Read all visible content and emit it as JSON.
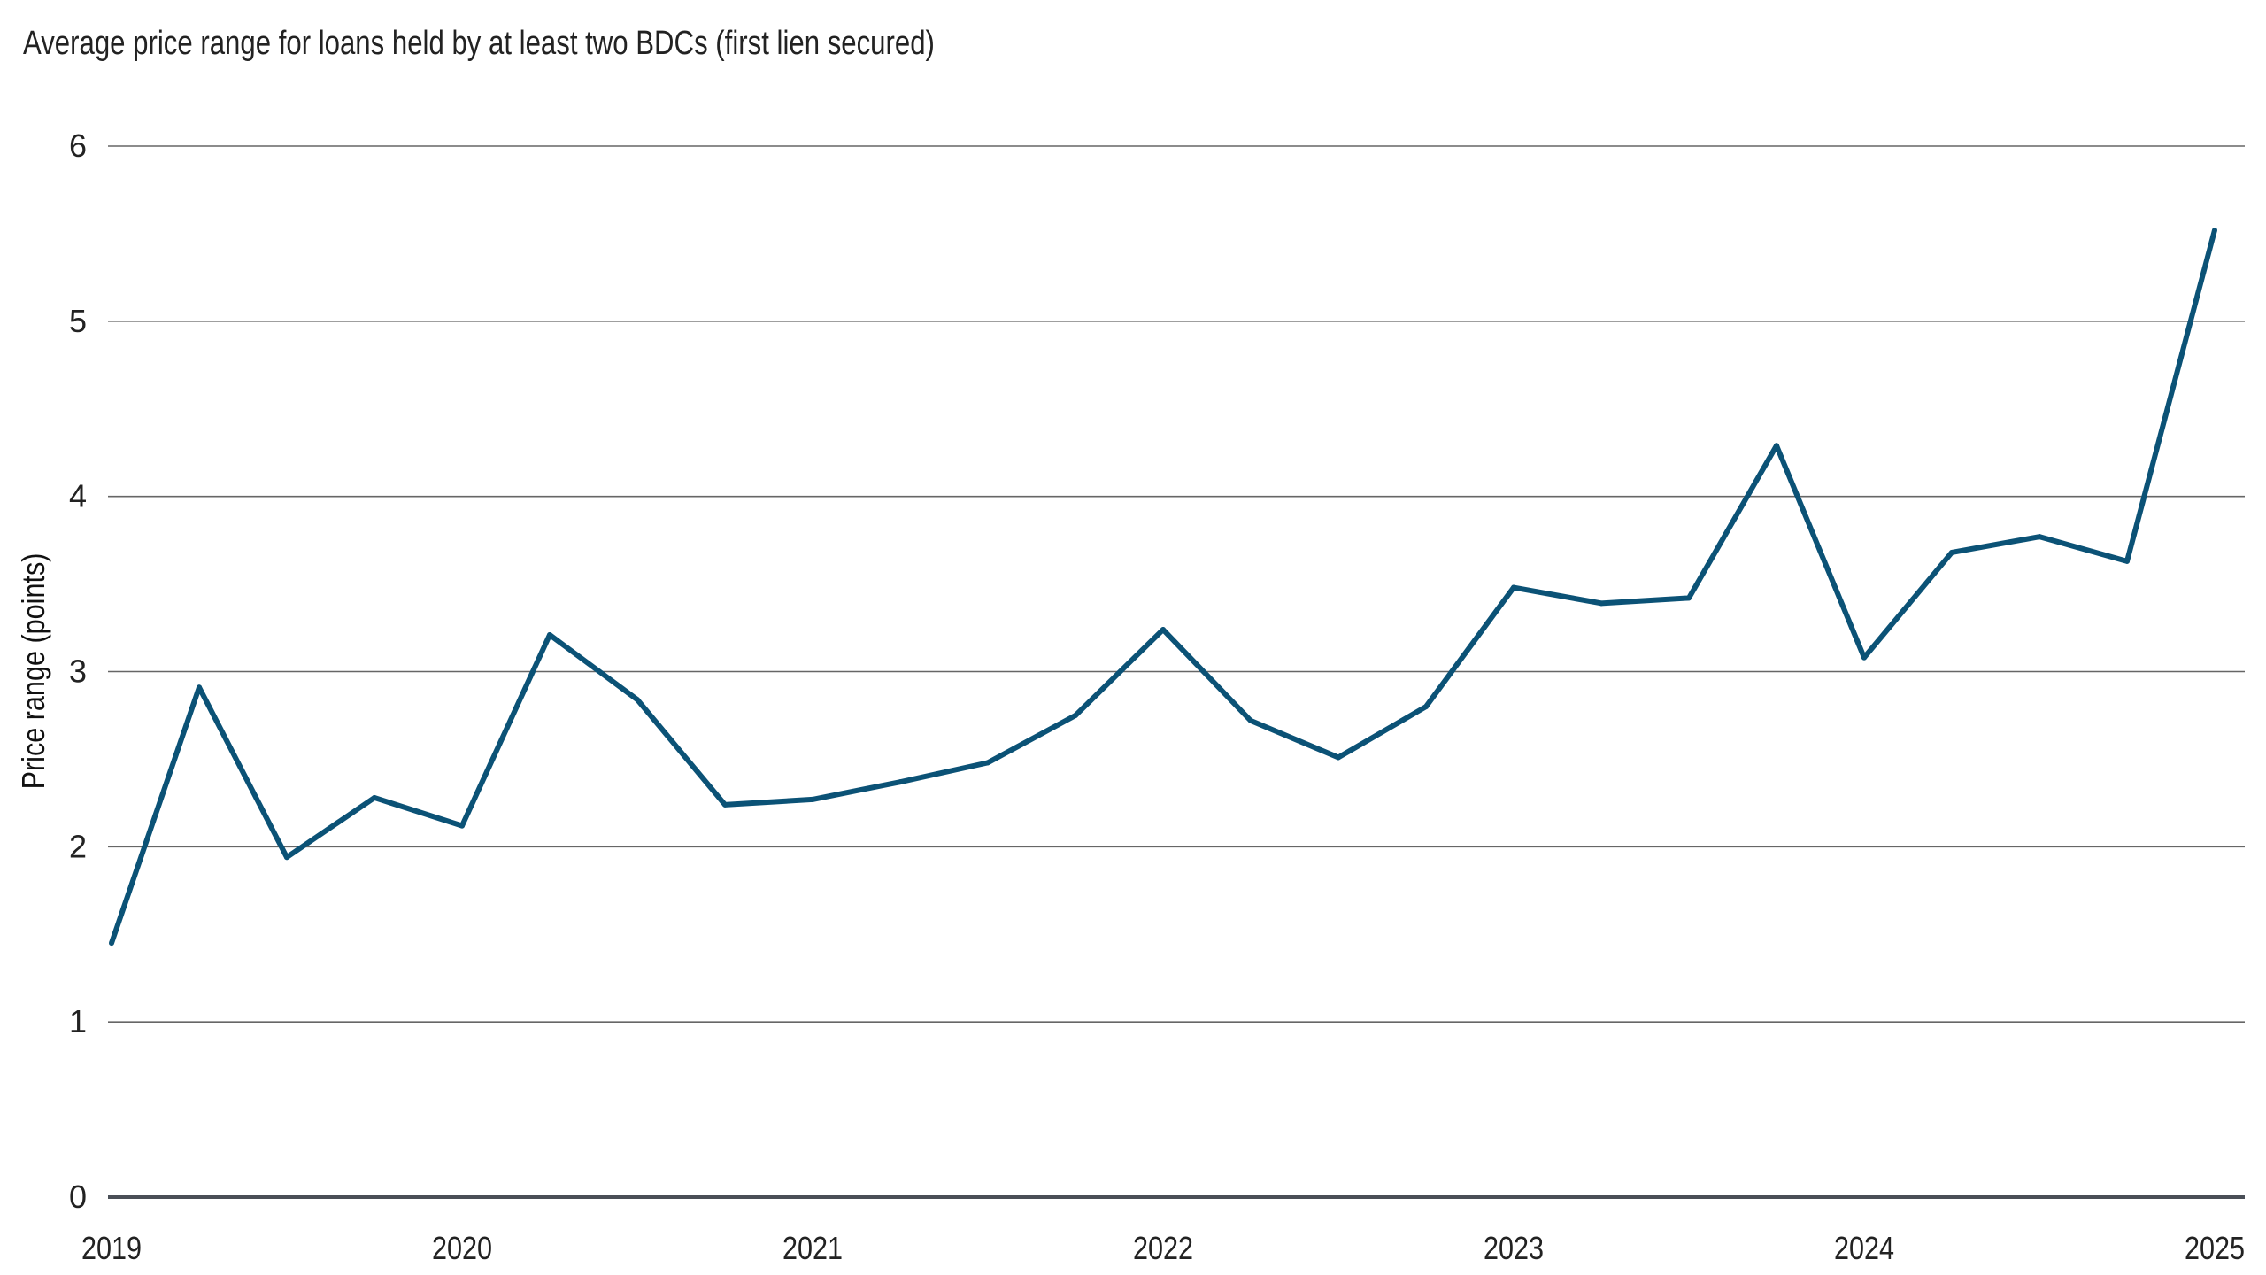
{
  "chart_data": {
    "type": "line",
    "title": "Average price range for loans held by at least two BDCs (first lien secured)",
    "xlabel": "",
    "ylabel": "Price range (points)",
    "xlim": [
      2019,
      2025
    ],
    "ylim": [
      0,
      6
    ],
    "x_ticks": [
      "2019",
      "2020",
      "2021",
      "2022",
      "2023",
      "2024",
      "2025"
    ],
    "y_ticks": [
      "0",
      "1",
      "2",
      "3",
      "4",
      "5",
      "6"
    ],
    "grid": "horizontal",
    "colors": {
      "line": "#0b5276",
      "grid": "#666666",
      "axis": "#4a4f57"
    },
    "x": [
      2019,
      2019.25,
      2019.5,
      2019.75,
      2020,
      2020.25,
      2020.5,
      2020.75,
      2021,
      2021.25,
      2021.5,
      2021.75,
      2022,
      2022.25,
      2022.5,
      2022.75,
      2023,
      2023.25,
      2023.5,
      2023.75,
      2024,
      2024.25,
      2024.5,
      2024.75,
      2025
    ],
    "series": [
      {
        "values": [
          1.45,
          2.91,
          1.94,
          2.28,
          2.12,
          3.21,
          2.84,
          2.24,
          2.27,
          2.37,
          2.48,
          2.75,
          3.24,
          2.72,
          2.51,
          2.8,
          3.48,
          3.39,
          3.42,
          4.29,
          3.08,
          3.68,
          3.77,
          3.63,
          5.52
        ]
      }
    ]
  }
}
